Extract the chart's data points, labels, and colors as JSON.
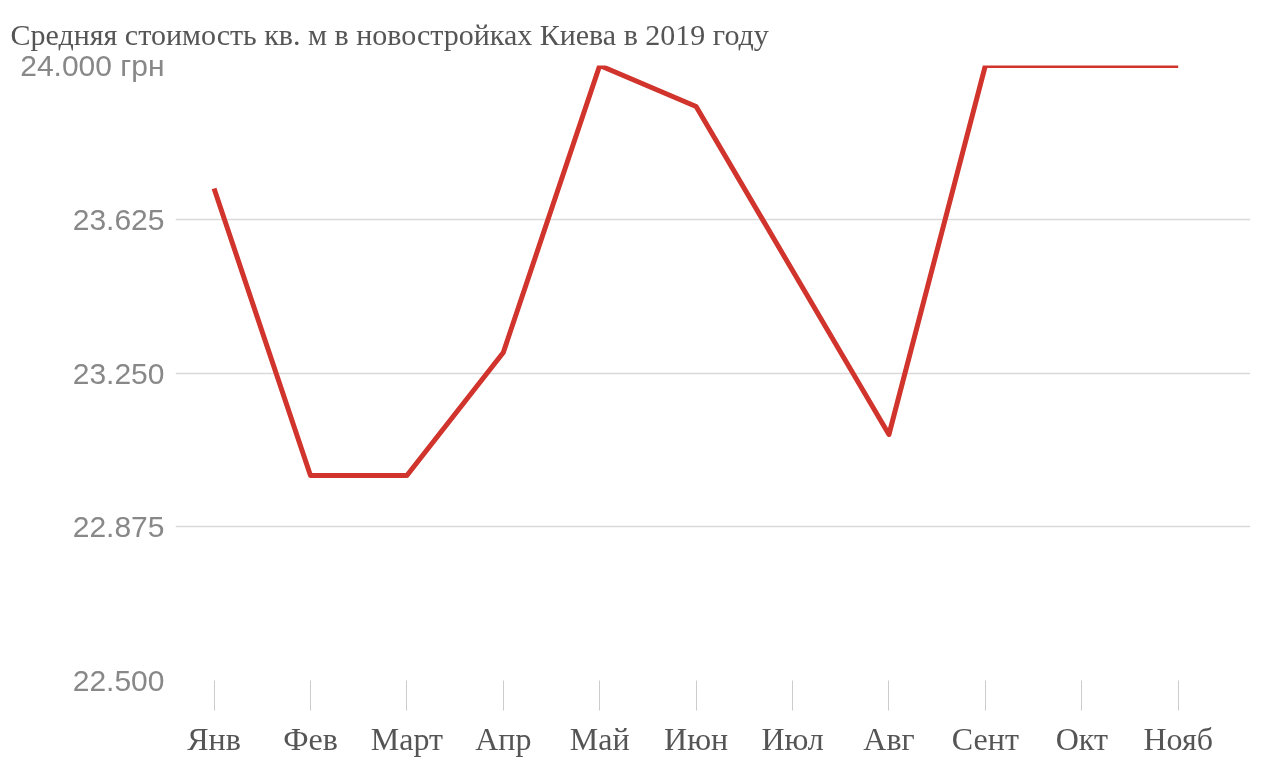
{
  "chart_data": {
    "type": "line",
    "title": "Средняя стоимость кв. м в новостройках Киева в 2019 году",
    "categories": [
      "Янв",
      "Фев",
      "Март",
      "Апр",
      "Май",
      "Июн",
      "Июл",
      "Авг",
      "Сент",
      "Окт",
      "Нояб"
    ],
    "series": [
      {
        "color": "#d0342c",
        "values": [
          23700,
          23000,
          23000,
          23300,
          24000,
          23900,
          23500,
          23100,
          24000,
          24000,
          24000
        ]
      }
    ],
    "ylim": [
      22500,
      24000
    ],
    "yticks": [
      {
        "value": 22500,
        "label": "22.500"
      },
      {
        "value": 22875,
        "label": "22.875"
      },
      {
        "value": 23250,
        "label": "23.250"
      },
      {
        "value": 23625,
        "label": "23.625"
      },
      {
        "value": 24000,
        "label": "24.000 грн"
      }
    ],
    "grid": "y",
    "marker": "none",
    "line_style": "solid"
  }
}
